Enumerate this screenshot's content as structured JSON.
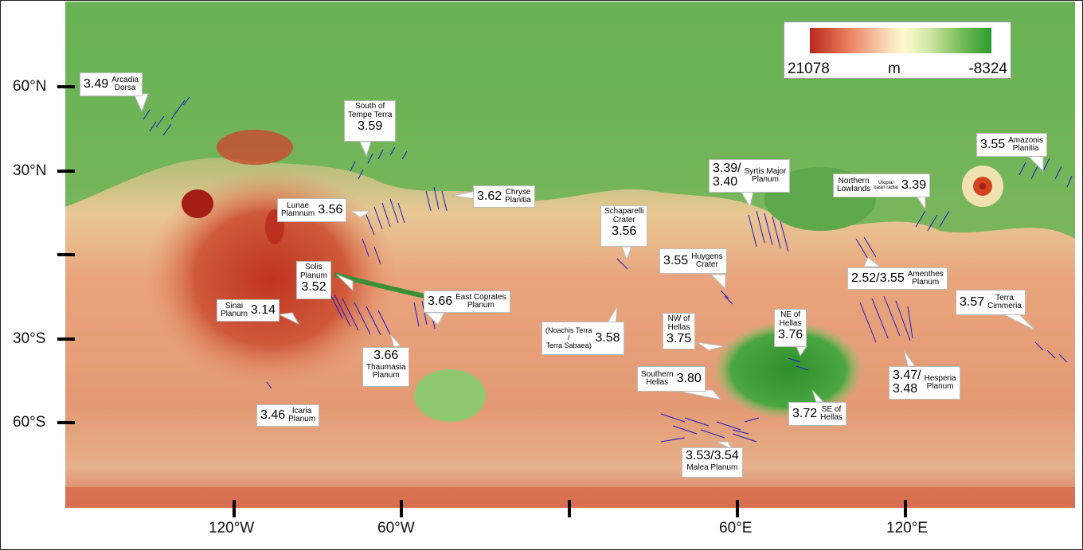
{
  "map": {
    "legend": {
      "min_label": "21078",
      "unit": "m",
      "max_label": "-8324",
      "colors": [
        "#b8281d",
        "#f6c9a8",
        "#fffbd0",
        "#7cbf5e",
        "#2e9a2e"
      ]
    },
    "lat_labels": [
      "60°N",
      "30°N",
      "30°S",
      "60°S"
    ],
    "lon_labels": [
      "120°W",
      "60°W",
      "60°E",
      "120°E"
    ],
    "units": [
      {
        "id": "arcadia",
        "age": "3.49",
        "name": "Arcadia\nDorsa"
      },
      {
        "id": "tempe",
        "age": "3.59",
        "name": "South of\nTempe Terra"
      },
      {
        "id": "chryse",
        "age": "3.62",
        "name": "Chryse\nPlanitia"
      },
      {
        "id": "lunae",
        "age": "3.56",
        "name": "Lunae\nPlamnum"
      },
      {
        "id": "solis",
        "age": "3.52",
        "name": "Solis\nPlanum"
      },
      {
        "id": "sinai",
        "age": "3.14",
        "name": "Sinai\nPlanum"
      },
      {
        "id": "coprates",
        "age": "3.66",
        "name": "East Coprates\nPlanum"
      },
      {
        "id": "thaumasia",
        "age": "3.66",
        "name": "Thaumasia\nPlanum"
      },
      {
        "id": "icaria",
        "age": "3.46",
        "name": "Icaria\nPlanum"
      },
      {
        "id": "schiaparelli",
        "age": "3.56",
        "name": "Schaparelli\nCrater"
      },
      {
        "id": "huygens",
        "age": "3.55",
        "name": "Huygens\nCrater"
      },
      {
        "id": "noachis",
        "age": "3.58",
        "name": "(Noachis Terra\n/\nTerra Sabaea)"
      },
      {
        "id": "syrtis",
        "age": "3.39/\n3.40",
        "name": "Syrtis Major\nPlanum"
      },
      {
        "id": "nwhellas",
        "age": "3.75",
        "name": "NW of\nHellas"
      },
      {
        "id": "nehellas",
        "age": "3.76",
        "name": "NE of\nHellas"
      },
      {
        "id": "shellas",
        "age": "3.80",
        "name": "Southern\nHellas"
      },
      {
        "id": "sehellas",
        "age": "3.72",
        "name": "SE of\nHellas"
      },
      {
        "id": "malea",
        "age": "3.53/3.54",
        "name": "Malea Planum"
      },
      {
        "id": "northern",
        "age": "3.39",
        "name": "Northern\nLowlands",
        "note": "Utopia/\nbasin radial"
      },
      {
        "id": "amazonis",
        "age": "3.55",
        "name": "Amazonis\nPlanitia"
      },
      {
        "id": "amenthes",
        "age": "2.52/3.55",
        "name": "Amenthes\nPlanum"
      },
      {
        "id": "cimmeria",
        "age": "3.57",
        "name": "Terra\nCimmeria"
      },
      {
        "id": "hesperia",
        "age": "3.47/\n3.48",
        "name": "Hesperia\nPlanum"
      }
    ],
    "feature_color": "#1a1acc"
  }
}
